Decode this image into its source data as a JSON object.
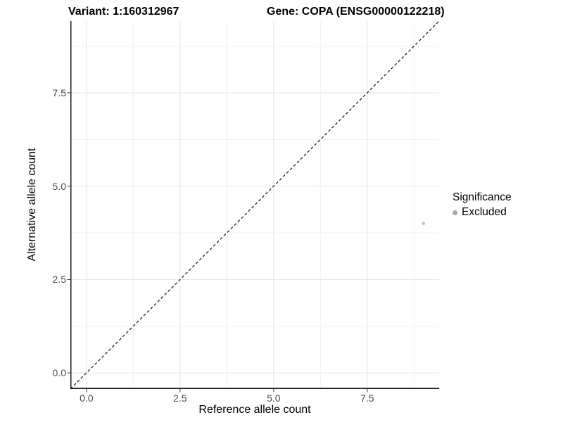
{
  "figure": {
    "title_left": "Variant: 1:160312967",
    "title_right": "Gene: COPA (ENSG00000122218)"
  },
  "chart_data": {
    "type": "scatter",
    "title": "Variant: 1:160312967   Gene: COPA (ENSG00000122218)",
    "xlabel": "Reference allele count",
    "ylabel": "Alternative allele count",
    "xlim": [
      -0.43,
      9.42
    ],
    "ylim": [
      -0.43,
      9.42
    ],
    "x_ticks": {
      "values": [
        0,
        2.5,
        5,
        7.5
      ],
      "labels": [
        "0.0",
        "2.5",
        "5.0",
        "7.5"
      ]
    },
    "y_ticks": {
      "values": [
        0,
        2.5,
        5,
        7.5
      ],
      "labels": [
        "0.0",
        "2.5",
        "5.0",
        "7.5"
      ]
    },
    "minor_ticks": [
      1.25,
      3.75,
      6.25,
      8.75
    ],
    "grid": {
      "major": true,
      "minor": true
    },
    "identity_line": {
      "equation": "y = x",
      "style": "dashed",
      "color": "#111111"
    },
    "series": [
      {
        "name": "Excluded",
        "color": "#c3c3c3",
        "point_radius": 2.5,
        "points": [
          [
            9,
            4
          ]
        ]
      }
    ],
    "legend": {
      "title": "Significance",
      "position": "right",
      "entries": [
        {
          "label": "Excluded",
          "dot_color": "#a4a4a4"
        }
      ]
    },
    "colors": {
      "background": "#ffffff",
      "grid_major": "#e4e4e4",
      "grid_minor": "#f1f1f1",
      "axis_line": "#1a1a1a",
      "tick_mark": "#333333",
      "tick_text": "#4a4a4a"
    }
  }
}
